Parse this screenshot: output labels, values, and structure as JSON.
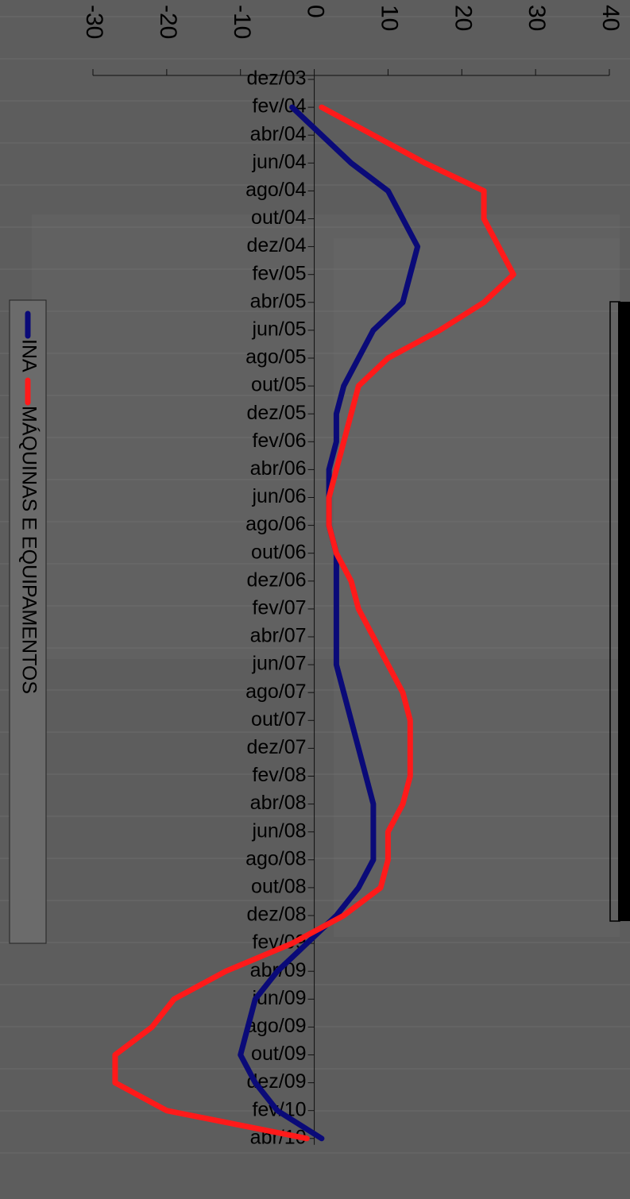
{
  "chart_data": {
    "type": "line",
    "orientation": "rotated-90-clockwise",
    "value_axis": {
      "range": [
        -30,
        40
      ],
      "ticks": [
        -30,
        -20,
        -10,
        0,
        10,
        20,
        30,
        40
      ],
      "tick_labels": [
        "-30",
        "-20",
        "-10",
        "0",
        "10",
        "20",
        "30",
        "40"
      ]
    },
    "categories": [
      "dez/03",
      "fev/04",
      "abr/04",
      "jun/04",
      "ago/04",
      "out/04",
      "dez/04",
      "fev/05",
      "abr/05",
      "jun/05",
      "ago/05",
      "out/05",
      "dez/05",
      "fev/06",
      "abr/06",
      "jun/06",
      "ago/06",
      "out/06",
      "dez/06",
      "fev/07",
      "abr/07",
      "jun/07",
      "ago/07",
      "out/07",
      "dez/07",
      "fev/08",
      "abr/08",
      "jun/08",
      "ago/08",
      "out/08",
      "dez/08",
      "fev/09",
      "abr/09",
      "jun/09",
      "ago/09",
      "out/09",
      "dez/09",
      "fev/10",
      "abr/10"
    ],
    "series": [
      {
        "name": "INA",
        "color": "#0a0a78",
        "values": [
          null,
          -3,
          1,
          5,
          10,
          12,
          14,
          13,
          12,
          8,
          6,
          4,
          3,
          3,
          2,
          2,
          2,
          3,
          3,
          3,
          3,
          3,
          4,
          5,
          6,
          7,
          8,
          8,
          8,
          6,
          3,
          -1,
          -5,
          -8,
          -9,
          -10,
          -8,
          -5,
          1
        ]
      },
      {
        "name": "MÁQUINAS E EQUIPAMENTOS",
        "color": "#ff1a1a",
        "values": [
          null,
          1,
          8,
          15,
          23,
          23,
          25,
          27,
          23,
          17,
          10,
          6,
          5,
          4,
          3,
          2,
          2,
          3,
          5,
          6,
          8,
          10,
          12,
          13,
          13,
          13,
          12,
          10,
          10,
          9,
          4,
          -3,
          -12,
          -19,
          -22,
          -27,
          -27,
          -20,
          -1
        ]
      }
    ],
    "legend": {
      "placement": "left"
    },
    "grid": false
  },
  "icons": {
    "chart_frame": "black-framed-panel",
    "background": "css-reference-texture"
  }
}
